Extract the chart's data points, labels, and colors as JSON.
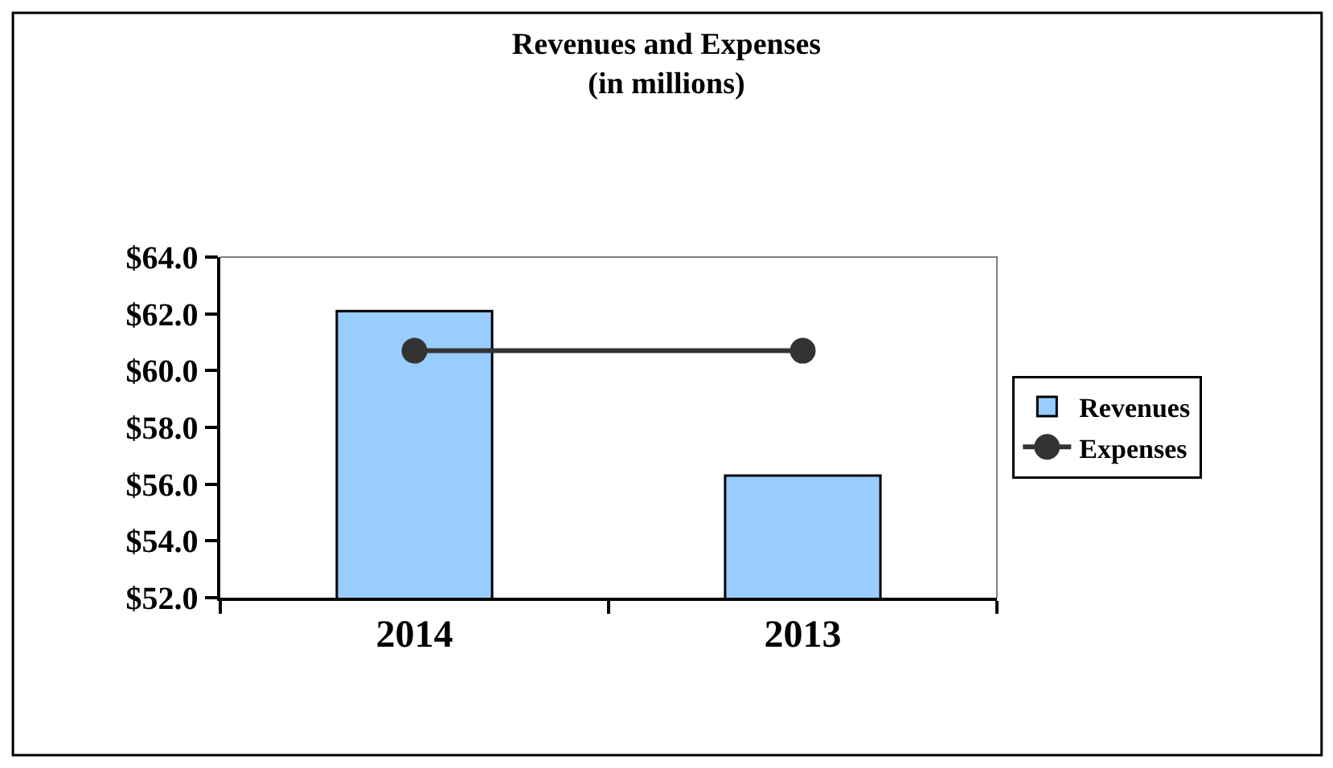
{
  "chart_data": {
    "type": "bar",
    "title": "Revenues and Expenses\n(in millions)",
    "categories": [
      "2014",
      "2013"
    ],
    "series": [
      {
        "name": "Revenues",
        "color": "#99ccff",
        "values": [
          62.1,
          56.3
        ]
      },
      {
        "name": "Expenses",
        "type": "line",
        "color": "#333333",
        "values": [
          60.7,
          60.7
        ]
      }
    ],
    "ylim": [
      52,
      64
    ],
    "yticks": [
      {
        "value": 52,
        "label": "$52.0"
      },
      {
        "value": 54,
        "label": "$54.0"
      },
      {
        "value": 56,
        "label": "$56.0"
      },
      {
        "value": 58,
        "label": "$58.0"
      },
      {
        "value": 60,
        "label": "$60.0"
      },
      {
        "value": 62,
        "label": "$62.0"
      },
      {
        "value": 64,
        "label": "$64.0"
      }
    ],
    "legend": "right",
    "marker": "circle",
    "line_style": "solid"
  }
}
